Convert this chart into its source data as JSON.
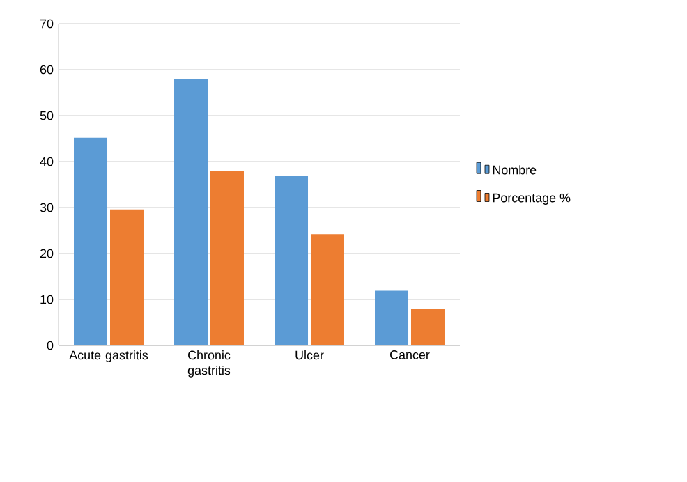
{
  "chart_data": {
    "type": "bar",
    "categories": [
      "Acute gastritis",
      "Chronic gastritis",
      "Ulcer",
      "Cancer"
    ],
    "series": [
      {
        "name": "Nombre",
        "color": "#5b9bd5",
        "values": [
          45.2,
          57.9,
          36.9,
          11.9
        ]
      },
      {
        "name": "Porcentage %",
        "color": "#ed7d31",
        "values": [
          29.6,
          37.9,
          24.2,
          7.9
        ]
      }
    ],
    "ylim": [
      0,
      70
    ],
    "yticks": [
      0,
      10,
      20,
      30,
      40,
      50,
      60,
      70
    ],
    "grid": "y",
    "legend": "right"
  }
}
